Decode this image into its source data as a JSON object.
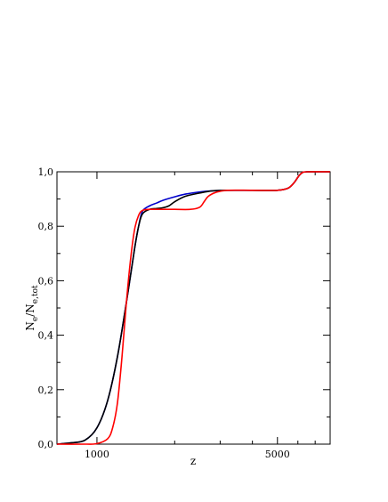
{
  "chart_data": {
    "type": "line",
    "xlabel": "z",
    "ylabel": {
      "main": "N",
      "sub1": "e",
      "sep": "/N",
      "sub2": "e,tot"
    },
    "xscale": "log",
    "xlim": [
      700,
      8000
    ],
    "ylim": [
      0.0,
      1.0
    ],
    "x_ticks": [
      1000,
      5000
    ],
    "x_tick_labels": [
      "1000",
      "5000"
    ],
    "y_ticks": [
      0.0,
      0.2,
      0.4,
      0.6,
      0.8,
      1.0
    ],
    "y_tick_labels": [
      "0,0",
      "0,2",
      "0,4",
      "0,6",
      "0,8",
      "1,0"
    ],
    "grid": false,
    "legend": "none",
    "series": [
      {
        "color": "#0000cc",
        "x": [
          700,
          800,
          900,
          1000,
          1100,
          1200,
          1300,
          1400,
          1450,
          1500,
          1600,
          1700,
          1800,
          2000,
          2200,
          2500,
          2800,
          3200,
          4000,
          5000,
          5500,
          5800,
          6000,
          6200,
          6500,
          8000
        ],
        "y": [
          0.0,
          0.005,
          0.015,
          0.06,
          0.16,
          0.32,
          0.52,
          0.72,
          0.8,
          0.855,
          0.875,
          0.885,
          0.895,
          0.908,
          0.918,
          0.926,
          0.93,
          0.932,
          0.932,
          0.932,
          0.94,
          0.96,
          0.98,
          0.995,
          1.0,
          1.0
        ]
      },
      {
        "color": "#000000",
        "x": [
          700,
          800,
          900,
          1000,
          1100,
          1200,
          1300,
          1400,
          1450,
          1500,
          1600,
          1700,
          1800,
          1900,
          2000,
          2200,
          2500,
          2800,
          3200,
          4000,
          5000,
          5500,
          5800,
          6000,
          6200,
          6500,
          8000
        ],
        "y": [
          0.0,
          0.005,
          0.015,
          0.06,
          0.16,
          0.32,
          0.52,
          0.72,
          0.8,
          0.845,
          0.862,
          0.865,
          0.868,
          0.875,
          0.89,
          0.91,
          0.922,
          0.93,
          0.932,
          0.932,
          0.932,
          0.94,
          0.96,
          0.98,
          0.995,
          1.0,
          1.0
        ]
      },
      {
        "color": "#ff0000",
        "x": [
          700,
          900,
          1000,
          1100,
          1150,
          1200,
          1250,
          1300,
          1350,
          1400,
          1450,
          1500,
          1600,
          1800,
          2000,
          2300,
          2500,
          2600,
          2700,
          2900,
          3200,
          4000,
          5000,
          5500,
          5800,
          6000,
          6200,
          6500,
          8000
        ],
        "y": [
          0.0,
          0.0,
          0.002,
          0.02,
          0.06,
          0.15,
          0.32,
          0.52,
          0.68,
          0.79,
          0.84,
          0.858,
          0.862,
          0.862,
          0.862,
          0.862,
          0.87,
          0.89,
          0.91,
          0.925,
          0.932,
          0.932,
          0.932,
          0.94,
          0.96,
          0.98,
          0.995,
          1.0,
          1.0
        ]
      }
    ]
  }
}
